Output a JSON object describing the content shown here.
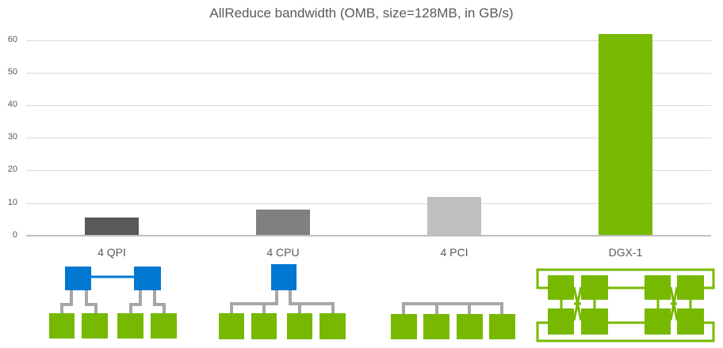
{
  "chart_data": {
    "type": "bar",
    "title": "AllReduce bandwidth (OMB, size=128MB, in GB/s)",
    "xlabel": "",
    "ylabel": "",
    "categories": [
      "4 QPI",
      "4 CPU",
      "4 PCI",
      "DGX-1"
    ],
    "values": [
      5.6,
      8.0,
      12.0,
      62.0
    ],
    "bar_colors": [
      "#595959",
      "#808080",
      "#bfbfbf",
      "#76b900"
    ],
    "ylim": [
      0,
      60
    ],
    "yticks": [
      "0",
      "10",
      "20",
      "30",
      "40",
      "50",
      "60"
    ],
    "grid": true,
    "legend": null
  },
  "diagrams": [
    {
      "label": "4 QPI topology",
      "cpus": 2,
      "gpus": 4,
      "interconnect": "QPI"
    },
    {
      "label": "4 CPU topology",
      "cpus": 1,
      "gpus": 4,
      "interconnect": "PCIe via CPU"
    },
    {
      "label": "4 PCI topology",
      "cpus": 0,
      "gpus": 4,
      "interconnect": "PCIe switch"
    },
    {
      "label": "DGX-1 topology",
      "cpus": 0,
      "gpus": 8,
      "interconnect": "NVLink hybrid cube-mesh"
    }
  ],
  "colors": {
    "cpu": "#0078d2",
    "gpu": "#76b900",
    "wire": "#a6a6a6",
    "grid": "#d9d9d9"
  }
}
